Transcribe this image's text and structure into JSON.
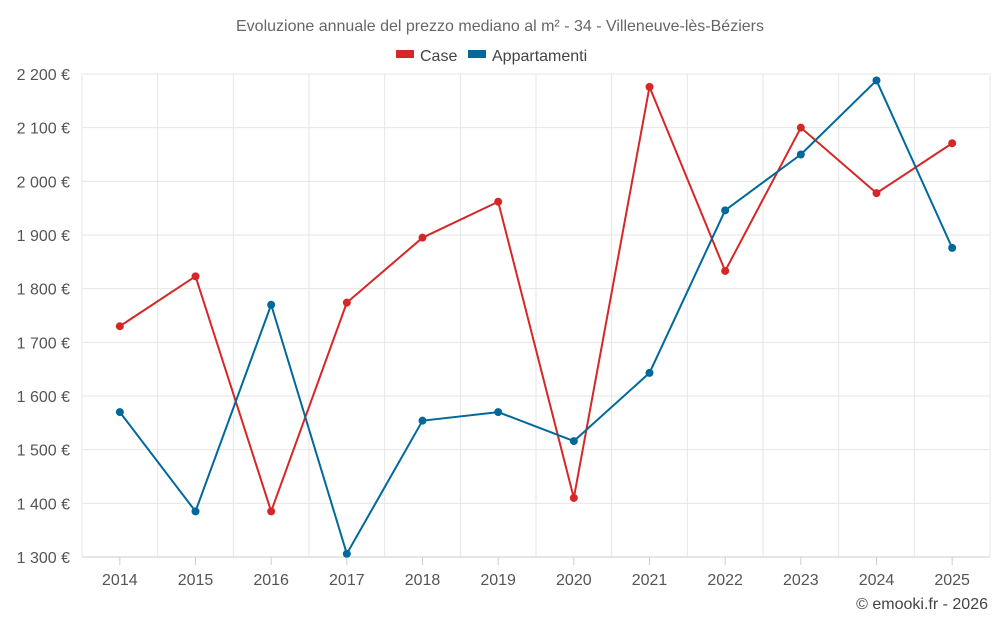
{
  "chart_data": {
    "type": "line",
    "title": "Evoluzione annuale del prezzo mediano al m² - 34 - Villeneuve-lès-Béziers",
    "categories": [
      "2014",
      "2015",
      "2016",
      "2017",
      "2018",
      "2019",
      "2020",
      "2021",
      "2022",
      "2023",
      "2024",
      "2025"
    ],
    "series": [
      {
        "name": "Case",
        "color": "#d62728",
        "values": [
          1730,
          1823,
          1385,
          1774,
          1895,
          1962,
          1410,
          2176,
          1833,
          2100,
          1978,
          2071
        ]
      },
      {
        "name": "Appartamenti",
        "color": "#00699c",
        "values": [
          1570,
          1385,
          1770,
          1306,
          1554,
          1570,
          1516,
          1643,
          1946,
          2050,
          2188,
          1876
        ]
      }
    ],
    "ylim": [
      1300,
      2200
    ],
    "yticks": [
      1300,
      1400,
      1500,
      1600,
      1700,
      1800,
      1900,
      2000,
      2100,
      2200
    ],
    "ytick_labels": [
      "1 300 €",
      "1 400 €",
      "1 500 €",
      "1 600 €",
      "1 700 €",
      "1 800 €",
      "1 900 €",
      "2 000 €",
      "2 100 €",
      "2 200 €"
    ],
    "legend_position": "top-center",
    "grid": true,
    "xlabel": "",
    "ylabel": ""
  },
  "credit": "© emooki.fr - 2026"
}
